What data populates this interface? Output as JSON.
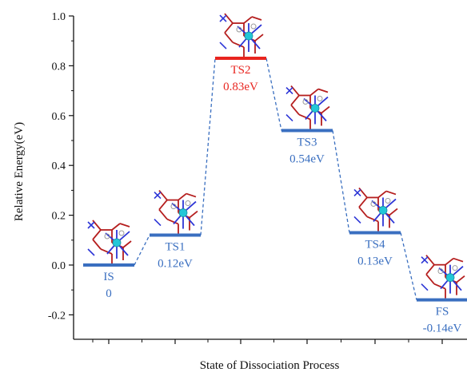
{
  "chart_data": {
    "type": "energy-profile",
    "title": "",
    "xlabel": "State of Dissociation Process",
    "ylabel": "Relative Energy(eV)",
    "ylim": [
      -0.3,
      1.0
    ],
    "yticks": [
      "1.0",
      "0.8",
      "0.6",
      "0.4",
      "0.2",
      "0.0",
      "-0.2"
    ],
    "ytick_values": [
      1.0,
      0.8,
      0.6,
      0.4,
      0.2,
      0.0,
      -0.2
    ],
    "grid": false,
    "states": [
      {
        "name": "IS",
        "energy_label": "0",
        "value": 0.0,
        "color": "#3a6fc0"
      },
      {
        "name": "TS1",
        "energy_label": "0.12eV",
        "value": 0.12,
        "color": "#3a6fc0"
      },
      {
        "name": "TS2",
        "energy_label": "0.83eV",
        "value": 0.83,
        "color": "#e8251f"
      },
      {
        "name": "TS3",
        "energy_label": "0.54eV",
        "value": 0.54,
        "color": "#3a6fc0"
      },
      {
        "name": "TS4",
        "energy_label": "0.13eV",
        "value": 0.13,
        "color": "#3a6fc0"
      },
      {
        "name": "FS",
        "energy_label": "-0.14eV",
        "value": -0.14,
        "color": "#3a6fc0"
      }
    ],
    "connector_color": "#3a6fc0",
    "structure_colors": {
      "bond_red": "#b51e1e",
      "bond_blue": "#2c35d6",
      "atom": "#22c7d8",
      "ring": "#999999"
    }
  }
}
